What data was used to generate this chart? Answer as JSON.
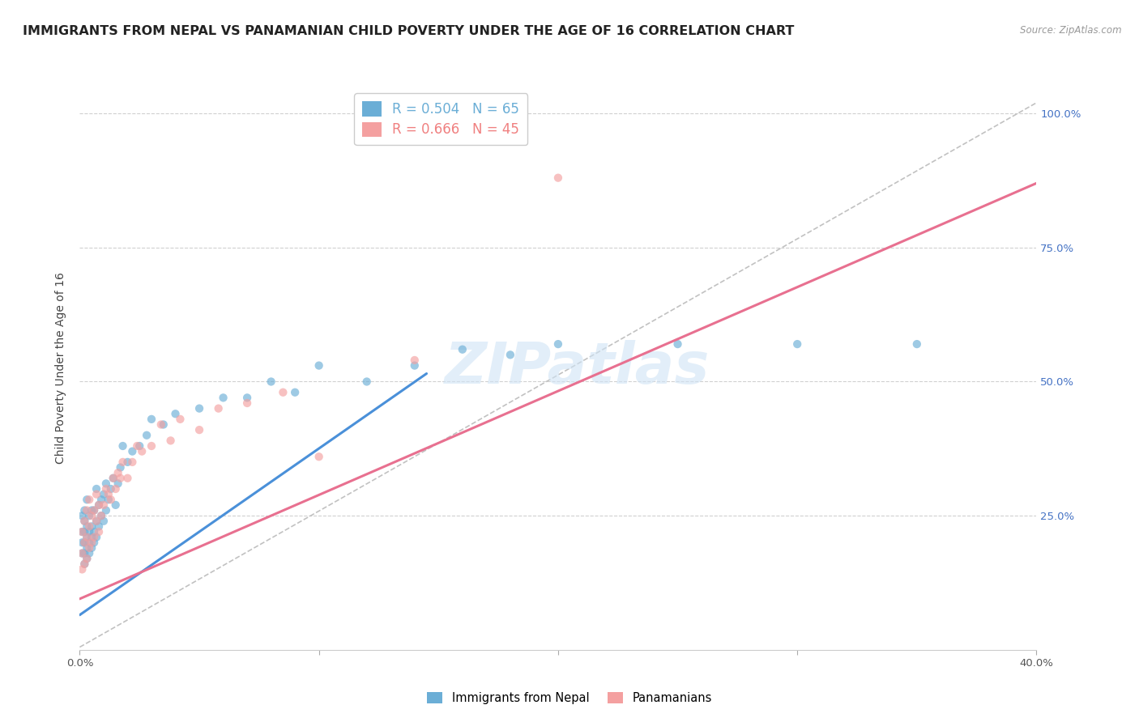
{
  "title": "IMMIGRANTS FROM NEPAL VS PANAMANIAN CHILD POVERTY UNDER THE AGE OF 16 CORRELATION CHART",
  "source": "Source: ZipAtlas.com",
  "ylabel": "Child Poverty Under the Age of 16",
  "xlim": [
    0.0,
    0.4
  ],
  "ylim": [
    0.0,
    1.05
  ],
  "xtick_positions": [
    0.0,
    0.1,
    0.2,
    0.3,
    0.4
  ],
  "xtick_labels": [
    "0.0%",
    "",
    "",
    "",
    "40.0%"
  ],
  "ytick_positions_right": [
    1.0,
    0.75,
    0.5,
    0.25
  ],
  "ytick_labels_right": [
    "100.0%",
    "75.0%",
    "50.0%",
    "25.0%"
  ],
  "grid_color": "#d0d0d0",
  "background_color": "#ffffff",
  "watermark": "ZIPatlas",
  "legend_entries": [
    {
      "label_r": "R = 0.504",
      "label_n": "N = 65",
      "color": "#6baed6"
    },
    {
      "label_r": "R = 0.666",
      "label_n": "N = 45",
      "color": "#f08080"
    }
  ],
  "nepal_scatter_x": [
    0.001,
    0.001,
    0.001,
    0.001,
    0.002,
    0.002,
    0.002,
    0.002,
    0.002,
    0.002,
    0.003,
    0.003,
    0.003,
    0.003,
    0.003,
    0.004,
    0.004,
    0.004,
    0.004,
    0.005,
    0.005,
    0.005,
    0.005,
    0.006,
    0.006,
    0.006,
    0.007,
    0.007,
    0.007,
    0.008,
    0.008,
    0.009,
    0.009,
    0.01,
    0.01,
    0.011,
    0.011,
    0.012,
    0.013,
    0.014,
    0.015,
    0.016,
    0.017,
    0.018,
    0.02,
    0.022,
    0.025,
    0.028,
    0.03,
    0.035,
    0.04,
    0.05,
    0.06,
    0.07,
    0.08,
    0.09,
    0.1,
    0.12,
    0.14,
    0.16,
    0.18,
    0.2,
    0.25,
    0.3,
    0.35
  ],
  "nepal_scatter_y": [
    0.18,
    0.2,
    0.22,
    0.25,
    0.16,
    0.18,
    0.2,
    0.22,
    0.24,
    0.26,
    0.17,
    0.19,
    0.21,
    0.23,
    0.28,
    0.18,
    0.2,
    0.22,
    0.25,
    0.19,
    0.21,
    0.23,
    0.26,
    0.2,
    0.22,
    0.26,
    0.21,
    0.24,
    0.3,
    0.23,
    0.27,
    0.25,
    0.28,
    0.24,
    0.29,
    0.26,
    0.31,
    0.28,
    0.3,
    0.32,
    0.27,
    0.31,
    0.34,
    0.38,
    0.35,
    0.37,
    0.38,
    0.4,
    0.43,
    0.42,
    0.44,
    0.45,
    0.47,
    0.47,
    0.5,
    0.48,
    0.53,
    0.5,
    0.53,
    0.56,
    0.55,
    0.57,
    0.57,
    0.57,
    0.57
  ],
  "panama_scatter_x": [
    0.001,
    0.001,
    0.001,
    0.002,
    0.002,
    0.002,
    0.003,
    0.003,
    0.003,
    0.004,
    0.004,
    0.004,
    0.005,
    0.005,
    0.006,
    0.006,
    0.007,
    0.007,
    0.008,
    0.008,
    0.009,
    0.01,
    0.011,
    0.012,
    0.013,
    0.014,
    0.015,
    0.016,
    0.017,
    0.018,
    0.02,
    0.022,
    0.024,
    0.026,
    0.03,
    0.034,
    0.038,
    0.042,
    0.05,
    0.058,
    0.07,
    0.085,
    0.1,
    0.14,
    0.2
  ],
  "panama_scatter_y": [
    0.15,
    0.18,
    0.22,
    0.16,
    0.2,
    0.24,
    0.17,
    0.21,
    0.26,
    0.19,
    0.23,
    0.28,
    0.2,
    0.25,
    0.21,
    0.26,
    0.24,
    0.29,
    0.22,
    0.27,
    0.25,
    0.27,
    0.3,
    0.29,
    0.28,
    0.32,
    0.3,
    0.33,
    0.32,
    0.35,
    0.32,
    0.35,
    0.38,
    0.37,
    0.38,
    0.42,
    0.39,
    0.43,
    0.41,
    0.45,
    0.46,
    0.48,
    0.36,
    0.54,
    0.88
  ],
  "nepal_line_x": [
    0.0,
    0.145
  ],
  "nepal_line_y": [
    0.065,
    0.515
  ],
  "nepal_line_color": "#4a90d9",
  "panama_line_x": [
    0.0,
    0.4
  ],
  "panama_line_y": [
    0.095,
    0.87
  ],
  "panama_line_color": "#e87090",
  "diagonal_line_x": [
    0.0,
    0.4
  ],
  "diagonal_line_y": [
    0.005,
    1.02
  ],
  "diagonal_line_color": "#bbbbbb",
  "scatter_blue": "#6baed6",
  "scatter_pink": "#f4a0a0",
  "scatter_size": 55,
  "scatter_alpha": 0.65,
  "title_fontsize": 11.5,
  "axis_label_fontsize": 10,
  "tick_fontsize": 9.5,
  "legend_fontsize": 12,
  "right_tick_color": "#4472c4"
}
